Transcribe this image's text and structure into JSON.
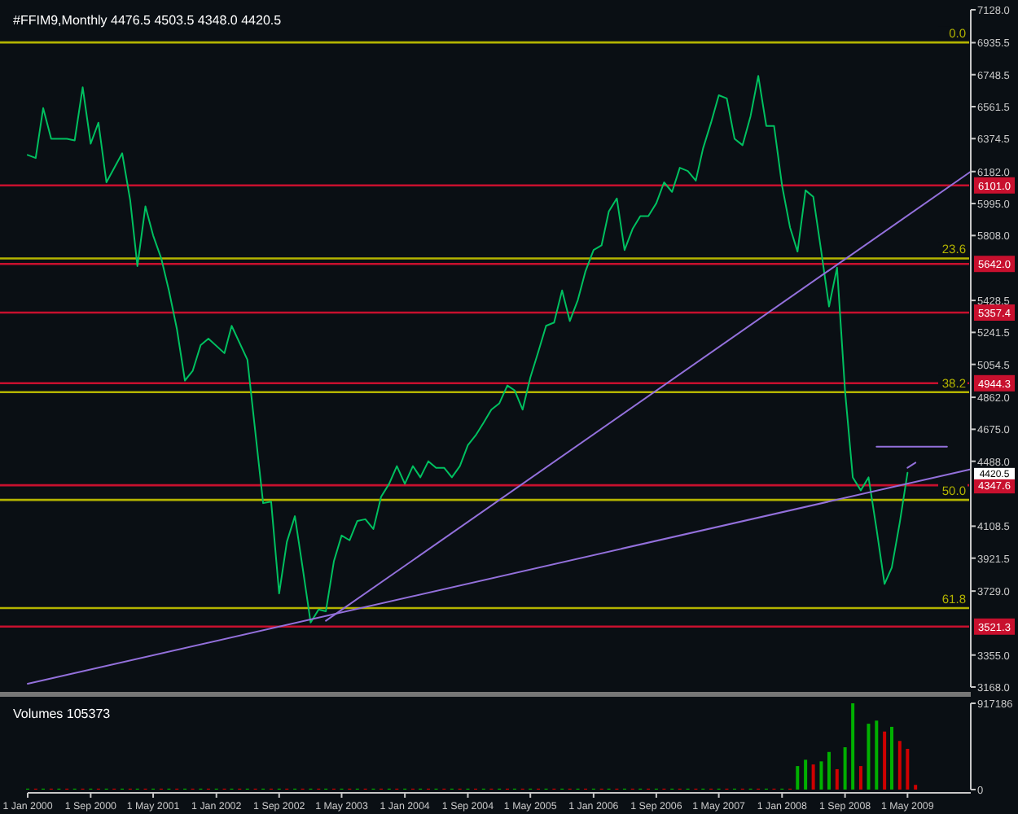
{
  "chart_data": [
    {
      "type": "line",
      "title": "#FFIM9,Monthly  4476.5 4503.5 4348.0 4420.5",
      "xlim": [
        "2000-01",
        "2010-01"
      ],
      "ylim": [
        3168,
        7128
      ],
      "tick_labels": "y",
      "yticks": [
        {
          "value": 7128,
          "label": "7128.0"
        },
        {
          "value": 6935.5,
          "label": "6935.5"
        },
        {
          "value": 6748.5,
          "label": "6748.5"
        },
        {
          "value": 6561.5,
          "label": "6561.5"
        },
        {
          "value": 6374.5,
          "label": "6374.5"
        },
        {
          "value": 6182,
          "label": "6182.0"
        },
        {
          "value": 5995,
          "label": "5995.0"
        },
        {
          "value": 5808,
          "label": "5808.0"
        },
        {
          "value": 5428.5,
          "label": "5428.5"
        },
        {
          "value": 5241.5,
          "label": "5241.5"
        },
        {
          "value": 5054.5,
          "label": "5054.5"
        },
        {
          "value": 4862,
          "label": "4862.0"
        },
        {
          "value": 4675,
          "label": "4675.0"
        },
        {
          "value": 4488,
          "label": "4488.0"
        },
        {
          "value": 4108.5,
          "label": "4108.5"
        },
        {
          "value": 3921.5,
          "label": "3921.5"
        },
        {
          "value": 3729,
          "label": "3729.0"
        },
        {
          "value": 3355,
          "label": "3355.0"
        },
        {
          "value": 3168,
          "label": "3168.0"
        }
      ],
      "series": [
        {
          "color": "#00c060",
          "x": [
            "2000-01",
            "2000-02",
            "2000-03",
            "2000-04",
            "2000-06",
            "2000-07",
            "2000-08",
            "2000-09",
            "2000-10",
            "2000-11",
            "2001-01",
            "2001-02",
            "2001-03",
            "2001-04",
            "2001-05",
            "2001-06",
            "2001-07",
            "2001-08",
            "2001-09",
            "2001-10",
            "2001-11",
            "2001-12",
            "2002-02",
            "2002-03",
            "2002-05",
            "2002-07",
            "2002-08",
            "2002-09",
            "2002-10",
            "2002-11",
            "2002-12",
            "2003-01",
            "2003-02",
            "2003-03",
            "2003-04",
            "2003-05",
            "2003-06",
            "2003-07",
            "2003-08",
            "2003-09",
            "2003-10",
            "2003-11",
            "2003-12",
            "2004-01",
            "2004-02",
            "2004-03",
            "2004-04",
            "2004-05",
            "2004-06",
            "2004-07",
            "2004-08",
            "2004-09",
            "2004-10",
            "2004-11",
            "2004-12",
            "2005-01",
            "2005-02",
            "2005-03",
            "2005-04",
            "2005-05",
            "2005-06",
            "2005-07",
            "2005-08",
            "2005-09",
            "2005-10",
            "2005-11",
            "2005-12",
            "2006-01",
            "2006-02",
            "2006-03",
            "2006-04",
            "2006-05",
            "2006-06",
            "2006-07",
            "2006-08",
            "2006-09",
            "2006-10",
            "2006-11",
            "2006-12",
            "2007-01",
            "2007-02",
            "2007-03",
            "2007-04",
            "2007-05",
            "2007-06",
            "2007-07",
            "2007-08",
            "2007-09",
            "2007-10",
            "2007-11",
            "2007-12",
            "2008-01",
            "2008-02",
            "2008-03",
            "2008-04",
            "2008-05",
            "2008-06",
            "2008-07",
            "2008-08",
            "2008-09",
            "2008-10",
            "2008-11",
            "2008-12",
            "2009-01",
            "2009-02",
            "2009-03",
            "2009-04",
            "2009-05"
          ],
          "values": [
            6279,
            6261,
            6553,
            6374,
            6374,
            6364,
            6675,
            6345,
            6468,
            6119,
            6289,
            6015,
            5629,
            5978,
            5808,
            5676,
            5487,
            5261,
            4960,
            5016,
            5167,
            5205,
            5120,
            5280,
            5082,
            4243,
            4252,
            3715,
            4017,
            4167,
            3866,
            3545,
            3621,
            3611,
            3903,
            4054,
            4026,
            4139,
            4149,
            4092,
            4281,
            4356,
            4460,
            4356,
            4460,
            4394,
            4488,
            4450,
            4450,
            4394,
            4460,
            4582,
            4639,
            4714,
            4790,
            4827,
            4931,
            4903,
            4790,
            4978,
            5129,
            5280,
            5299,
            5487,
            5308,
            5431,
            5601,
            5723,
            5751,
            5949,
            6025,
            5723,
            5846,
            5921,
            5921,
            5997,
            6119,
            6063,
            6204,
            6185,
            6129,
            6317,
            6468,
            6628,
            6610,
            6374,
            6336,
            6506,
            6741,
            6449,
            6449,
            6100,
            5855,
            5714,
            6072,
            6034,
            5714,
            5393,
            5620,
            4900,
            4394,
            4318,
            4394,
            4092,
            3771,
            3866,
            4130,
            4420.5
          ]
        },
        {
          "color": "#9370db",
          "x": [
            "2003-03",
            "2010-01"
          ],
          "values": [
            3555,
            6182
          ]
        },
        {
          "color": "#9370db",
          "x": [
            "2000-01",
            "2010-01"
          ],
          "values": [
            3187,
            4441
          ]
        },
        {
          "color": "#9370db",
          "x": [
            "2009-01",
            "2009-10"
          ],
          "values": [
            4573,
            4573
          ]
        },
        {
          "color": "#9370db",
          "x": [
            "2009-05",
            "2009-06"
          ],
          "values": [
            4450,
            4480
          ]
        }
      ],
      "ref_lines": [
        {
          "axis": "y",
          "value": 6937,
          "color": "#b4b400"
        },
        {
          "axis": "y",
          "value": 5674,
          "color": "#b4b400"
        },
        {
          "axis": "y",
          "value": 4892,
          "color": "#b4b400"
        },
        {
          "axis": "y",
          "value": 4262,
          "color": "#b4b400"
        },
        {
          "axis": "y",
          "value": 3630,
          "color": "#b4b400"
        },
        {
          "axis": "y",
          "value": 6101,
          "label": "6101.0",
          "color": "#c8102e"
        },
        {
          "axis": "y",
          "value": 5642,
          "label": "5642.0",
          "color": "#c8102e"
        },
        {
          "axis": "y",
          "value": 5357.4,
          "label": "5357.4",
          "color": "#c8102e"
        },
        {
          "axis": "y",
          "value": 4944.3,
          "label": "4944.3",
          "color": "#c8102e"
        },
        {
          "axis": "y",
          "value": 4347.6,
          "label": "4347.6",
          "color": "#c8102e"
        },
        {
          "axis": "y",
          "value": 3521.3,
          "label": "3521.3",
          "color": "#c8102e"
        }
      ],
      "annotations": [
        {
          "text": "4420.5",
          "x": "2010-01",
          "y": 4420.5
        },
        {
          "text": "0.0",
          "y": 6937
        },
        {
          "text": "23.6",
          "y": 5674
        },
        {
          "text": "38.2",
          "y": 4892
        },
        {
          "text": "50.0",
          "y": 4262
        },
        {
          "text": "61.8",
          "y": 3630
        }
      ]
    },
    {
      "type": "bar",
      "title": "Volumes 105373",
      "xlim": [
        "2000-01",
        "2010-01"
      ],
      "ylim": [
        0,
        917186
      ],
      "yticks": [
        917186,
        0
      ],
      "xticks": [
        {
          "value": "2000-01",
          "label": "1 Jan 2000"
        },
        {
          "value": "2000-09",
          "label": "1 Sep 2000"
        },
        {
          "value": "2001-05",
          "label": "1 May 2001"
        },
        {
          "value": "2002-01",
          "label": "1 Jan 2002"
        },
        {
          "value": "2002-09",
          "label": "1 Sep 2002"
        },
        {
          "value": "2003-05",
          "label": "1 May 2003"
        },
        {
          "value": "2004-01",
          "label": "1 Jan 2004"
        },
        {
          "value": "2004-09",
          "label": "1 Sep 2004"
        },
        {
          "value": "2005-05",
          "label": "1 May 2005"
        },
        {
          "value": "2006-01",
          "label": "1 Jan 2006"
        },
        {
          "value": "2006-09",
          "label": "1 Sep 2006"
        },
        {
          "value": "2007-05",
          "label": "1 May 2007"
        },
        {
          "value": "2008-01",
          "label": "1 Jan 2008"
        },
        {
          "value": "2008-09",
          "label": "1 Sep 2008"
        },
        {
          "value": "2009-05",
          "label": "1 May 2009"
        }
      ],
      "x": [
        "2000-01",
        "2000-02",
        "2000-03",
        "2000-04",
        "2000-05",
        "2000-06",
        "2000-07",
        "2000-08",
        "2000-09",
        "2000-10",
        "2000-11",
        "2000-12",
        "2001-01",
        "2001-02",
        "2001-03",
        "2001-04",
        "2001-05",
        "2001-06",
        "2001-07",
        "2001-08",
        "2001-09",
        "2001-10",
        "2001-11",
        "2001-12",
        "2002-01",
        "2002-02",
        "2002-03",
        "2002-04",
        "2002-05",
        "2002-06",
        "2002-07",
        "2002-08",
        "2002-09",
        "2002-10",
        "2002-11",
        "2002-12",
        "2003-01",
        "2003-02",
        "2003-03",
        "2003-04",
        "2003-05",
        "2003-06",
        "2003-07",
        "2003-08",
        "2003-09",
        "2003-10",
        "2003-11",
        "2003-12",
        "2004-01",
        "2004-02",
        "2004-03",
        "2004-04",
        "2004-05",
        "2004-06",
        "2004-07",
        "2004-08",
        "2004-09",
        "2004-10",
        "2004-11",
        "2004-12",
        "2005-01",
        "2005-02",
        "2005-03",
        "2005-04",
        "2005-05",
        "2005-06",
        "2005-07",
        "2005-08",
        "2005-09",
        "2005-10",
        "2005-11",
        "2005-12",
        "2006-01",
        "2006-02",
        "2006-03",
        "2006-04",
        "2006-05",
        "2006-06",
        "2006-07",
        "2006-08",
        "2006-09",
        "2006-10",
        "2006-11",
        "2006-12",
        "2007-01",
        "2007-02",
        "2007-03",
        "2007-04",
        "2007-05",
        "2007-06",
        "2007-07",
        "2007-08",
        "2007-09",
        "2007-10",
        "2007-11",
        "2007-12",
        "2008-01",
        "2008-02",
        "2008-03",
        "2008-04",
        "2008-05",
        "2008-06",
        "2008-07",
        "2008-08",
        "2008-09",
        "2008-10",
        "2008-11",
        "2008-12",
        "2009-01",
        "2009-02",
        "2009-03",
        "2009-04",
        "2009-05",
        "2009-06"
      ],
      "values": [
        10000,
        10000,
        10000,
        10000,
        10000,
        10000,
        10000,
        10000,
        10000,
        10000,
        10000,
        10000,
        10000,
        10000,
        10000,
        10000,
        10000,
        10000,
        10000,
        10000,
        10000,
        10000,
        10000,
        10000,
        10000,
        10000,
        10000,
        10000,
        10000,
        10000,
        10000,
        10000,
        10000,
        10000,
        10000,
        10000,
        10000,
        10000,
        10000,
        10000,
        10000,
        10000,
        10000,
        10000,
        10000,
        10000,
        10000,
        10000,
        10000,
        10000,
        10000,
        10000,
        10000,
        10000,
        10000,
        10000,
        10000,
        10000,
        10000,
        10000,
        10000,
        10000,
        10000,
        10000,
        10000,
        10000,
        10000,
        10000,
        10000,
        10000,
        10000,
        10000,
        10000,
        10000,
        10000,
        10000,
        10000,
        10000,
        10000,
        10000,
        10000,
        10000,
        10000,
        10000,
        10000,
        10000,
        10000,
        10000,
        10000,
        10000,
        10000,
        10000,
        10000,
        10000,
        10000,
        10000,
        10000,
        10000,
        250000,
        317000,
        267000,
        300000,
        400000,
        217000,
        450000,
        917186,
        250000,
        700000,
        733000,
        617000,
        667000,
        517000,
        433000,
        50000
      ],
      "colors": [
        "#00b000",
        "#d00000",
        "#00b000",
        "#d00000",
        "#00b000",
        "#d00000",
        "#00b000",
        "#d00000",
        "#00b000",
        "#d00000",
        "#00b000",
        "#d00000",
        "#00b000",
        "#d00000",
        "#00b000",
        "#d00000",
        "#00b000",
        "#d00000",
        "#00b000",
        "#d00000",
        "#00b000",
        "#d00000",
        "#00b000",
        "#d00000",
        "#00b000",
        "#d00000",
        "#00b000",
        "#d00000",
        "#00b000",
        "#d00000",
        "#00b000",
        "#d00000",
        "#00b000",
        "#d00000",
        "#00b000",
        "#d00000",
        "#00b000",
        "#d00000",
        "#00b000",
        "#d00000",
        "#00b000",
        "#d00000",
        "#00b000",
        "#d00000",
        "#00b000",
        "#d00000",
        "#00b000",
        "#d00000",
        "#00b000",
        "#d00000",
        "#00b000",
        "#d00000",
        "#00b000",
        "#d00000",
        "#00b000",
        "#d00000",
        "#00b000",
        "#d00000",
        "#00b000",
        "#d00000",
        "#00b000",
        "#d00000",
        "#00b000",
        "#d00000",
        "#00b000",
        "#d00000",
        "#00b000",
        "#d00000",
        "#00b000",
        "#d00000",
        "#00b000",
        "#d00000",
        "#00b000",
        "#d00000",
        "#00b000",
        "#d00000",
        "#00b000",
        "#d00000",
        "#00b000",
        "#d00000",
        "#00b000",
        "#d00000",
        "#00b000",
        "#d00000",
        "#00b000",
        "#d00000",
        "#00b000",
        "#d00000",
        "#00b000",
        "#d00000",
        "#00b000",
        "#d00000",
        "#00b000",
        "#d00000",
        "#00b000",
        "#d00000",
        "#00b000",
        "#d00000",
        "#00b000",
        "#00b000",
        "#d00000",
        "#00b000",
        "#00b000",
        "#d00000",
        "#00b000",
        "#00b000",
        "#d00000",
        "#00b000",
        "#00b000",
        "#d00000",
        "#00b000",
        "#d00000",
        "#d00000",
        "#d00000"
      ]
    }
  ]
}
